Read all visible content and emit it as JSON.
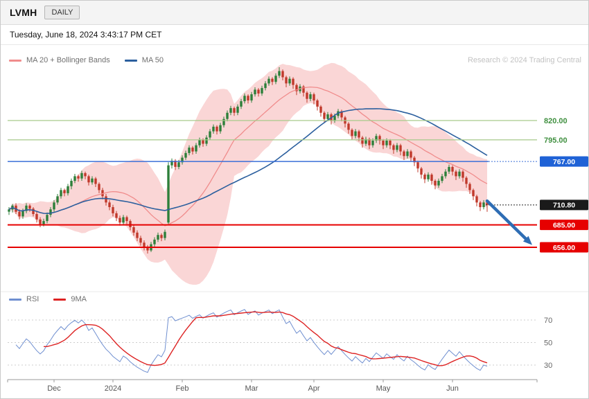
{
  "header": {
    "symbol": "LVMH",
    "timeframe": "DAILY",
    "datetime": "Tuesday, June 18, 2024 3:43:17 PM CET",
    "credit": "Research © 2024 Trading Central"
  },
  "legend": {
    "main": [
      {
        "label": "MA 20 + Bollinger Bands",
        "color": "#f08c8c"
      },
      {
        "label": "MA 50",
        "color": "#2b5f9e"
      }
    ],
    "rsi": [
      {
        "label": "RSI",
        "color": "#6f8fd0"
      },
      {
        "label": "9MA",
        "color": "#dd2222"
      }
    ]
  },
  "colors": {
    "up": "#2d7f3a",
    "down": "#c0392b",
    "band_fill": "rgba(245,181,181,0.55)",
    "ma20": "#f08c8c",
    "ma50": "#2b5f9e",
    "axis": "#999999",
    "tick_text": "#555555",
    "rsi_line": "#6f8fd0",
    "rsi_ma": "#dd2222",
    "grid_dotted": "#cccccc",
    "rsi_label": "#666666",
    "last_pill_bg": "#1a1a1a",
    "arrow": "#2e6db4"
  },
  "chart_data": {
    "type": "candlestick",
    "title": "LVMH DAILY",
    "last_price": {
      "value": 710.8,
      "label": "710.80"
    },
    "levels": [
      {
        "value": 820,
        "label": "820.00",
        "kind": "resistance",
        "line_color": "#a6c98a",
        "line_width": 1.3,
        "label_type": "text",
        "text_color": "#3f8f3f"
      },
      {
        "value": 795,
        "label": "795.00",
        "kind": "resistance",
        "line_color": "#a6c98a",
        "line_width": 1.3,
        "label_type": "text",
        "text_color": "#3f8f3f"
      },
      {
        "value": 767,
        "label": "767.00",
        "kind": "pivot",
        "line_color": "#3a6fd8",
        "line_width": 1.5,
        "label_type": "pill",
        "pill_bg": "#1f62d6",
        "dotted_extension": true
      },
      {
        "value": 685,
        "label": "685.00",
        "kind": "support",
        "line_color": "#e60000",
        "line_width": 2,
        "label_type": "pill",
        "pill_bg": "#e60000"
      },
      {
        "value": 656,
        "label": "656.00",
        "kind": "support",
        "line_color": "#e60000",
        "line_width": 2,
        "label_type": "pill",
        "pill_bg": "#e60000"
      }
    ],
    "x_axis": {
      "ticks": [
        {
          "label": "Dec",
          "index": 13
        },
        {
          "label": "2024",
          "index": 30
        },
        {
          "label": "Feb",
          "index": 50
        },
        {
          "label": "Mar",
          "index": 70
        },
        {
          "label": "Apr",
          "index": 88
        },
        {
          "label": "May",
          "index": 108
        },
        {
          "label": "Jun",
          "index": 128
        }
      ]
    },
    "y_axis": {
      "visible_range": [
        600,
        900
      ]
    },
    "indicators": {
      "bollinger_period": 20,
      "bollinger_stddev": 2,
      "ma50_period": 50,
      "rsi_period": 14,
      "rsi_ma_period": 9
    },
    "rsi_panel": {
      "gridlines": [
        70,
        50,
        30
      ]
    },
    "arrow": {
      "from": {
        "index": 138,
        "price": 716
      },
      "to": {
        "index": 151,
        "price": 659
      },
      "color": "#2e6db4"
    },
    "candles": [
      [
        702,
        708,
        698,
        705
      ],
      [
        705,
        712,
        701,
        710
      ],
      [
        710,
        713,
        699,
        702
      ],
      [
        702,
        705,
        692,
        696
      ],
      [
        696,
        706,
        693,
        703
      ],
      [
        703,
        713,
        700,
        710
      ],
      [
        710,
        712,
        702,
        706
      ],
      [
        706,
        708,
        696,
        699
      ],
      [
        699,
        702,
        688,
        692
      ],
      [
        692,
        695,
        682,
        686
      ],
      [
        686,
        693,
        683,
        690
      ],
      [
        690,
        701,
        687,
        698
      ],
      [
        698,
        708,
        695,
        705
      ],
      [
        705,
        717,
        702,
        714
      ],
      [
        714,
        725,
        711,
        722
      ],
      [
        722,
        733,
        719,
        730
      ],
      [
        730,
        732,
        722,
        726
      ],
      [
        726,
        738,
        723,
        735
      ],
      [
        735,
        745,
        731,
        742
      ],
      [
        742,
        751,
        739,
        748
      ],
      [
        748,
        750,
        741,
        745
      ],
      [
        745,
        755,
        742,
        752
      ],
      [
        752,
        754,
        744,
        748
      ],
      [
        748,
        750,
        736,
        740
      ],
      [
        740,
        748,
        737,
        745
      ],
      [
        745,
        747,
        734,
        738
      ],
      [
        738,
        740,
        726,
        730
      ],
      [
        730,
        733,
        718,
        722
      ],
      [
        722,
        725,
        710,
        714
      ],
      [
        714,
        717,
        704,
        708
      ],
      [
        708,
        711,
        696,
        700
      ],
      [
        700,
        703,
        690,
        694
      ],
      [
        694,
        697,
        684,
        688
      ],
      [
        688,
        698,
        685,
        695
      ],
      [
        695,
        697,
        686,
        690
      ],
      [
        690,
        692,
        678,
        682
      ],
      [
        682,
        685,
        671,
        675
      ],
      [
        675,
        678,
        664,
        668
      ],
      [
        668,
        671,
        658,
        662
      ],
      [
        662,
        665,
        652,
        656
      ],
      [
        656,
        659,
        648,
        652
      ],
      [
        652,
        663,
        650,
        660
      ],
      [
        660,
        669,
        657,
        666
      ],
      [
        666,
        675,
        663,
        672
      ],
      [
        672,
        674,
        664,
        668
      ],
      [
        668,
        679,
        665,
        676
      ],
      [
        688,
        766,
        686,
        762
      ],
      [
        762,
        771,
        758,
        768
      ],
      [
        768,
        770,
        756,
        760
      ],
      [
        760,
        769,
        757,
        766
      ],
      [
        766,
        775,
        763,
        772
      ],
      [
        772,
        781,
        769,
        778
      ],
      [
        778,
        788,
        775,
        785
      ],
      [
        785,
        787,
        776,
        780
      ],
      [
        780,
        791,
        777,
        788
      ],
      [
        788,
        798,
        785,
        795
      ],
      [
        795,
        797,
        786,
        790
      ],
      [
        790,
        801,
        787,
        798
      ],
      [
        798,
        809,
        795,
        806
      ],
      [
        806,
        815,
        803,
        812
      ],
      [
        812,
        814,
        802,
        806
      ],
      [
        806,
        817,
        803,
        814
      ],
      [
        814,
        825,
        811,
        822
      ],
      [
        822,
        833,
        819,
        830
      ],
      [
        830,
        839,
        827,
        836
      ],
      [
        836,
        838,
        826,
        830
      ],
      [
        830,
        841,
        827,
        838
      ],
      [
        838,
        848,
        835,
        845
      ],
      [
        845,
        855,
        842,
        852
      ],
      [
        852,
        854,
        842,
        846
      ],
      [
        846,
        857,
        843,
        854
      ],
      [
        854,
        863,
        851,
        860
      ],
      [
        860,
        862,
        851,
        855
      ],
      [
        855,
        865,
        852,
        862
      ],
      [
        862,
        871,
        859,
        868
      ],
      [
        868,
        877,
        865,
        874
      ],
      [
        874,
        876,
        866,
        870
      ],
      [
        870,
        881,
        867,
        878
      ],
      [
        878,
        889,
        875,
        884
      ],
      [
        884,
        886,
        872,
        876
      ],
      [
        876,
        878,
        863,
        868
      ],
      [
        868,
        877,
        865,
        874
      ],
      [
        874,
        876,
        861,
        866
      ],
      [
        866,
        868,
        853,
        858
      ],
      [
        858,
        867,
        855,
        864
      ],
      [
        864,
        866,
        851,
        856
      ],
      [
        856,
        858,
        843,
        848
      ],
      [
        848,
        857,
        845,
        854
      ],
      [
        854,
        856,
        841,
        846
      ],
      [
        846,
        848,
        833,
        838
      ],
      [
        838,
        840,
        825,
        830
      ],
      [
        830,
        832,
        817,
        822
      ],
      [
        822,
        831,
        819,
        828
      ],
      [
        828,
        830,
        815,
        820
      ],
      [
        820,
        829,
        817,
        826
      ],
      [
        826,
        835,
        823,
        832
      ],
      [
        832,
        834,
        819,
        824
      ],
      [
        824,
        826,
        811,
        816
      ],
      [
        816,
        818,
        803,
        808
      ],
      [
        808,
        810,
        795,
        800
      ],
      [
        800,
        809,
        797,
        806
      ],
      [
        806,
        808,
        793,
        798
      ],
      [
        798,
        800,
        785,
        790
      ],
      [
        790,
        799,
        787,
        796
      ],
      [
        796,
        798,
        783,
        788
      ],
      [
        788,
        797,
        785,
        794
      ],
      [
        794,
        803,
        791,
        800
      ],
      [
        800,
        802,
        789,
        794
      ],
      [
        794,
        796,
        783,
        788
      ],
      [
        788,
        797,
        785,
        794
      ],
      [
        794,
        796,
        783,
        788
      ],
      [
        788,
        790,
        777,
        782
      ],
      [
        782,
        791,
        779,
        788
      ],
      [
        788,
        790,
        775,
        780
      ],
      [
        780,
        782,
        769,
        774
      ],
      [
        774,
        783,
        771,
        780
      ],
      [
        780,
        782,
        767,
        772
      ],
      [
        772,
        774,
        761,
        766
      ],
      [
        766,
        768,
        753,
        758
      ],
      [
        758,
        760,
        745,
        750
      ],
      [
        750,
        752,
        739,
        744
      ],
      [
        744,
        753,
        741,
        750
      ],
      [
        750,
        752,
        737,
        742
      ],
      [
        742,
        744,
        731,
        736
      ],
      [
        736,
        745,
        733,
        742
      ],
      [
        742,
        751,
        739,
        748
      ],
      [
        748,
        757,
        745,
        754
      ],
      [
        754,
        763,
        751,
        760
      ],
      [
        760,
        762,
        749,
        754
      ],
      [
        754,
        756,
        743,
        748
      ],
      [
        748,
        757,
        745,
        754
      ],
      [
        754,
        756,
        741,
        746
      ],
      [
        746,
        748,
        733,
        738
      ],
      [
        738,
        740,
        725,
        730
      ],
      [
        730,
        732,
        717,
        722
      ],
      [
        722,
        724,
        709,
        714
      ],
      [
        714,
        716,
        703,
        708
      ],
      [
        708,
        717,
        705,
        714
      ],
      [
        714,
        716,
        702,
        710.8
      ]
    ]
  }
}
